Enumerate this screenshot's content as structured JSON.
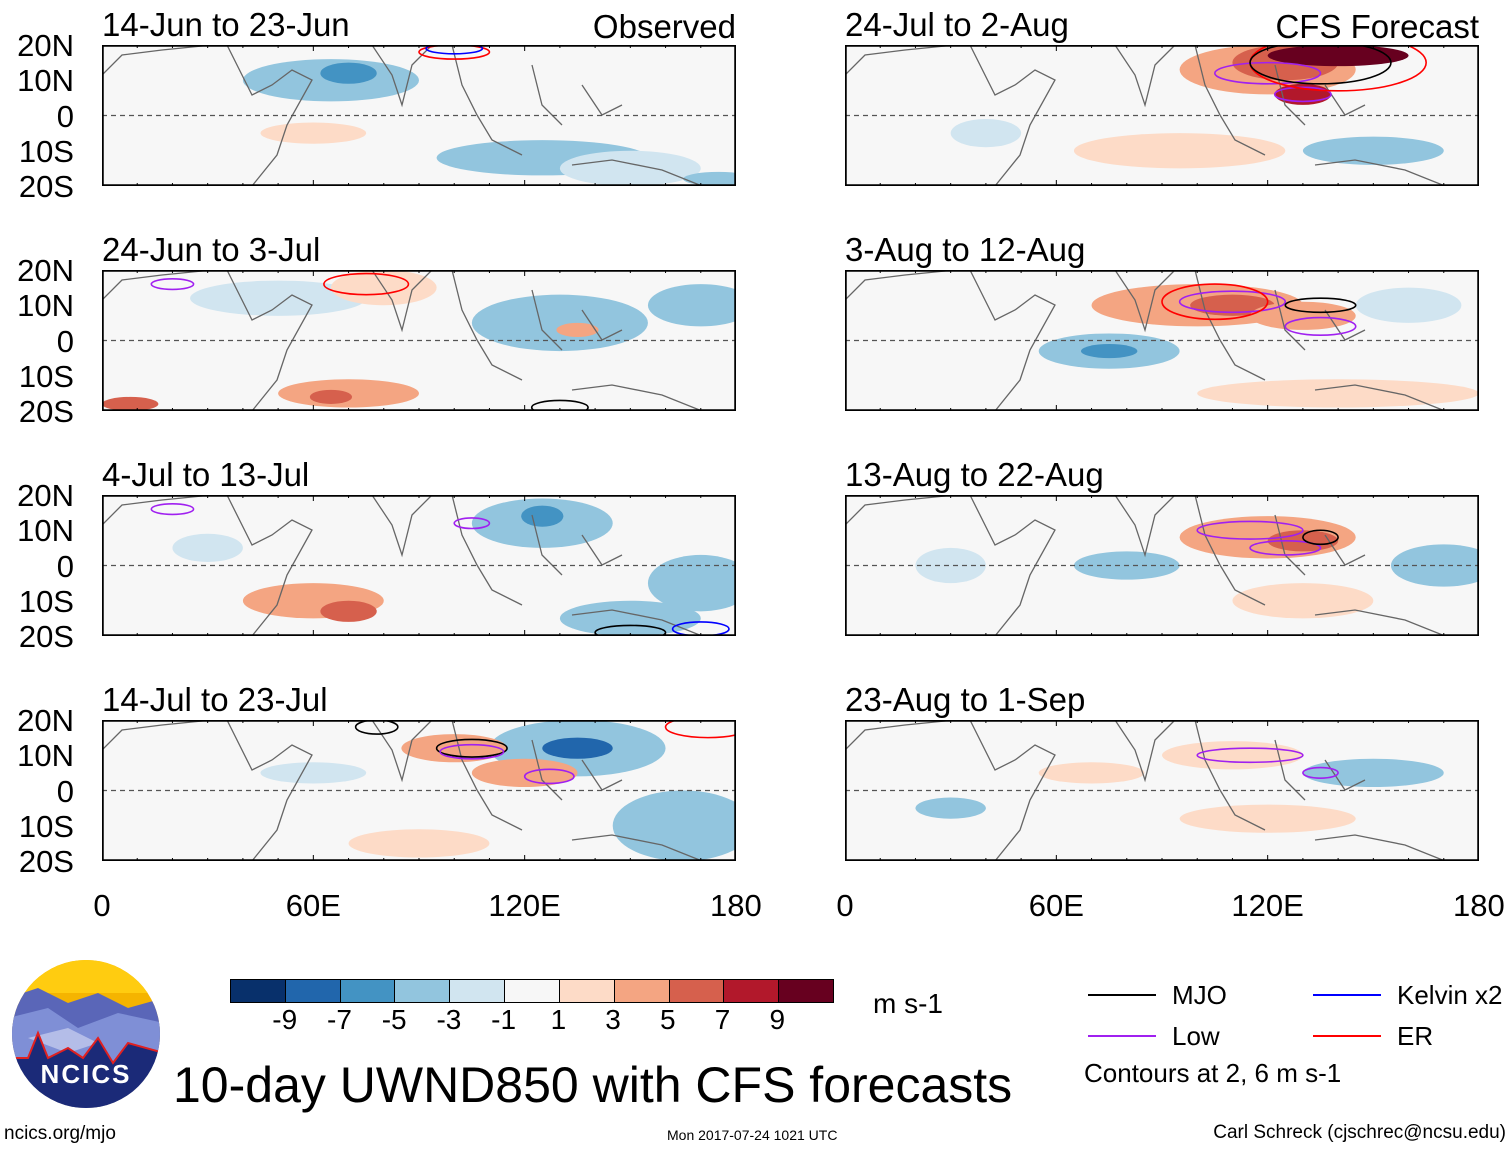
{
  "panels": [
    {
      "title": "14-Jun to 23-Jun",
      "tag": "Observed"
    },
    {
      "title": "24-Jun to 3-Jul",
      "tag": ""
    },
    {
      "title": "4-Jul to 13-Jul",
      "tag": ""
    },
    {
      "title": "14-Jul to 23-Jul",
      "tag": ""
    },
    {
      "title": "24-Jul to 2-Aug",
      "tag": "CFS Forecast"
    },
    {
      "title": "3-Aug to 12-Aug",
      "tag": ""
    },
    {
      "title": "13-Aug to 22-Aug",
      "tag": ""
    },
    {
      "title": "23-Aug to 1-Sep",
      "tag": ""
    }
  ],
  "lat_labels": [
    "20N",
    "10N",
    "0",
    "10S",
    "20S"
  ],
  "lon_labels": [
    "0",
    "60E",
    "120E",
    "180"
  ],
  "colorbar": {
    "colors": [
      "#08306b",
      "#2166ac",
      "#4393c3",
      "#92c5de",
      "#d1e5f0",
      "#f7f7f7",
      "#fddbc7",
      "#f4a582",
      "#d6604d",
      "#b2182b",
      "#67001f"
    ],
    "ticks": [
      "-9",
      "-7",
      "-5",
      "-3",
      "-1",
      "1",
      "3",
      "5",
      "7",
      "9"
    ],
    "units": "m s-1"
  },
  "legend": {
    "items": [
      {
        "label": "MJO",
        "color": "#000000"
      },
      {
        "label": "Kelvin x2",
        "color": "#0000ff"
      },
      {
        "label": "Low",
        "color": "#a020f0"
      },
      {
        "label": "ER",
        "color": "#ff0000"
      }
    ],
    "note": "Contours at 2, 6 m s-1"
  },
  "title": "10-day UWND850 with CFS forecasts",
  "logo_text": "NCICS",
  "footer": {
    "url": "ncics.org/mjo",
    "timestamp": "Mon 2017-07-24 1021 UTC",
    "credit": "Carl Schreck (cjschrec@ncsu.edu)"
  }
}
